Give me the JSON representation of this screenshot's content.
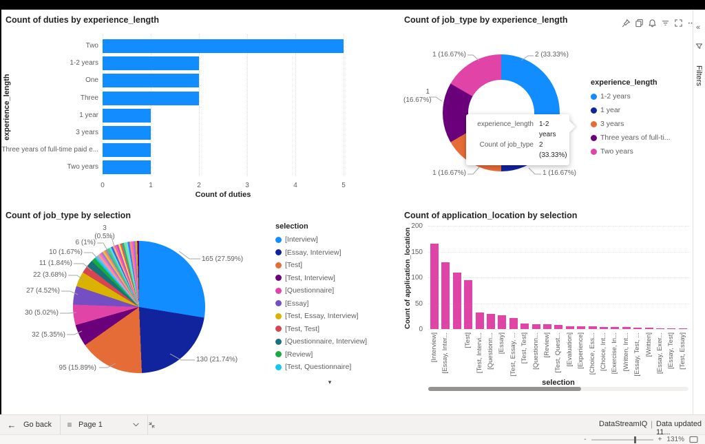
{
  "chrome": {
    "visual_header_icons": [
      "pin-icon",
      "copy-icon",
      "alert-icon",
      "filter-icon",
      "focus-mode-icon",
      "more-options-icon"
    ],
    "filters_panel": {
      "title": "Filters"
    },
    "footer": {
      "go_back_label": "Go back",
      "page_name": "Page 1",
      "brand": "DataStreamIQ",
      "separator": "|",
      "data_updated": "Data updated 11...",
      "zoom_minus": "-",
      "zoom_plus": "+",
      "zoom_level": "131%"
    }
  },
  "chart_data": [
    {
      "type": "bar",
      "orientation": "horizontal",
      "title": "Count of duties by experience_length",
      "xlabel": "Count of duties",
      "ylabel": "experience_length",
      "categories": [
        "Two",
        "1-2 years",
        "One",
        "Three",
        "1 year",
        "3 years",
        "Three years of full-time paid e...",
        "Two years"
      ],
      "values": [
        5,
        2,
        2,
        2,
        1,
        1,
        1,
        1
      ],
      "xlim": [
        0,
        5
      ],
      "xticks": [
        0,
        1,
        2,
        3,
        4,
        5
      ],
      "bar_color": "#118DFF",
      "grid": true
    },
    {
      "type": "pie",
      "donut": true,
      "title": "Count of job_type by experience_length",
      "legend_title": "experience_length",
      "legend_position": "right",
      "slices": [
        {
          "label": "1-2 years",
          "value": 2,
          "color": "#118DFF",
          "data_label": "2 (33.33%)"
        },
        {
          "label": "1 year",
          "value": 1,
          "color": "#12239E",
          "data_label": "1 (16.67%)"
        },
        {
          "label": "3 years",
          "value": 1,
          "color": "#E66C37",
          "data_label": "1 (16.67%)"
        },
        {
          "label": "Three years of full-ti...",
          "value": 1,
          "color": "#6B007B",
          "data_label": "1 (16.67%)"
        },
        {
          "label": "Two years",
          "value": 1,
          "color": "#E044A7",
          "data_label": "1 (16.67%)"
        }
      ],
      "tooltip": {
        "rows": [
          {
            "label": "experience_length",
            "value": "1-2 years"
          },
          {
            "label": "Count of job_type",
            "value": "2 (33.33%)"
          }
        ]
      }
    },
    {
      "type": "pie",
      "title": "Count of job_type by selection",
      "legend_title": "selection",
      "legend_position": "right",
      "slices": [
        {
          "label": "[Interview]",
          "value": 165,
          "color": "#118DFF",
          "data_label": "165 (27.59%)"
        },
        {
          "label": "[Essay, Interview]",
          "value": 130,
          "color": "#12239E",
          "data_label": "130 (21.74%)"
        },
        {
          "label": "[Test]",
          "value": 95,
          "color": "#E66C37",
          "data_label": "95 (15.89%)"
        },
        {
          "label": "[Test, Interview]",
          "value": 32,
          "color": "#6B007B",
          "data_label": "32 (5.35%)"
        },
        {
          "label": "[Questionnaire]",
          "value": 30,
          "color": "#E044A7",
          "data_label": "30 (5.02%)"
        },
        {
          "label": "[Essay]",
          "value": 27,
          "color": "#744EC2",
          "data_label": "27 (4.52%)"
        },
        {
          "label": "[Test, Essay, Interview]",
          "value": 22,
          "color": "#D9B300",
          "data_label": "22 (3.68%)"
        },
        {
          "label": "[Test, Test]",
          "value": 11,
          "color": "#D64550",
          "data_label": "11 (1.84%)"
        },
        {
          "label": "[Questionnaire, Interview]",
          "value": 10,
          "color": "#197278",
          "data_label": "10 (1.67%)"
        },
        {
          "label": "[Review]",
          "value": 6,
          "color": "#1AAB40",
          "data_label": "6 (1%)"
        },
        {
          "label": "[Test, Questionnaire]",
          "value": 3,
          "color": "#15C6F4",
          "data_label": "3 (0.5%)"
        }
      ],
      "others_total_value": 67,
      "others_colors": [
        "#75B6FF",
        "#FF9E7A",
        "#F472C8",
        "#9D7BD8",
        "#E8C62F",
        "#FF7E84",
        "#31B5A9",
        "#52CC6E",
        "#53DDF8",
        "#4A5DE8",
        "#FFB55E",
        "#FA5FAE",
        "#C14FD6",
        "#FFE14D",
        "#E85B5B",
        "#27AE8F",
        "#7CE577",
        "#66E0FF",
        "#3E7BFF",
        "#FF8F66",
        "#FF66B8",
        "#A366FF",
        "#D4B800",
        "#6B007B"
      ],
      "legend_more_indicator": "▾"
    },
    {
      "type": "bar",
      "orientation": "vertical",
      "title": "Count of application_location by selection",
      "xlabel": "selection",
      "ylabel": "Count of application_location",
      "categories": [
        "[Interview]",
        "[Essay, Inter...",
        "",
        "[Test]",
        "[Test, Intervi...",
        "[Questionn...",
        "[Essay]",
        "[Test, Essay, ...",
        "[Test, Test]",
        "[Questionn...",
        "[Review]",
        "[Test, Quest...",
        "[Evaluation]",
        "[Experience]",
        "[Choice, Ess...",
        "[Choice, Int...",
        "[Exercise, In...",
        "[Written, Int...",
        "[Essay, Test, ...",
        "[Written]",
        "[Essay, Exer...",
        "[Essay, Test]",
        "[Test, Essay]"
      ],
      "values": [
        165,
        130,
        110,
        95,
        32,
        30,
        27,
        22,
        11,
        10,
        10,
        8,
        6,
        6,
        5,
        4,
        4,
        4,
        3,
        3,
        2,
        2,
        2
      ],
      "ylim": [
        0,
        200
      ],
      "yticks": [
        0,
        50,
        100,
        150,
        200
      ],
      "bar_color": "#E044A7",
      "grid": true,
      "has_scrollbar": true
    }
  ]
}
